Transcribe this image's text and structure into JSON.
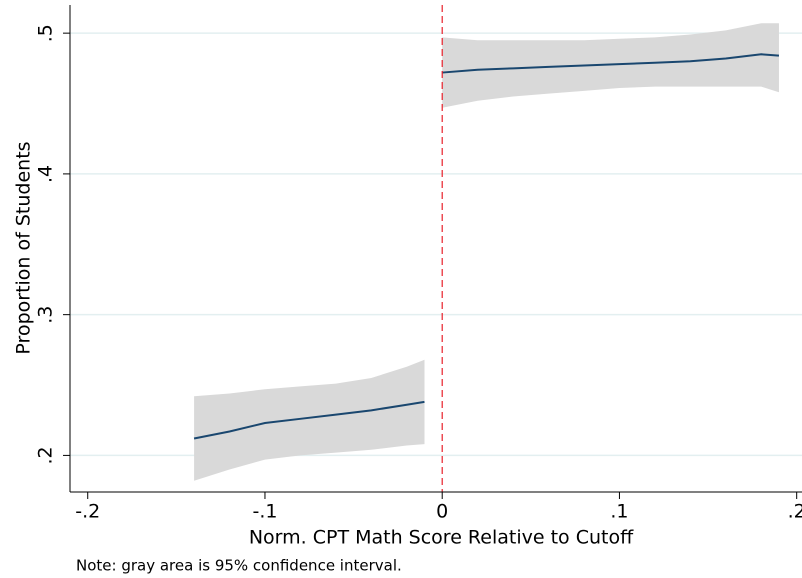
{
  "chart_data": {
    "type": "line",
    "y_label": "Proportion of Students",
    "x_label": "Norm. CPT Math Score Relative to Cutoff",
    "note": "Note: gray area is 95% confidence interval.",
    "xlim": [
      -0.21,
      0.203
    ],
    "ylim": [
      0.174,
      0.52
    ],
    "xticks": [
      {
        "value": -0.2,
        "label": "-.2"
      },
      {
        "value": -0.1,
        "label": "-.1"
      },
      0,
      {
        "value": 0.1,
        "label": ".1"
      },
      {
        "value": 0.2,
        "label": ".2"
      }
    ],
    "yticks": [
      {
        "value": 0.2,
        "label": ".2"
      },
      {
        "value": 0.3,
        "label": ".3"
      },
      {
        "value": 0.4,
        "label": ".4"
      },
      {
        "value": 0.5,
        "label": ".5"
      }
    ],
    "grid": true,
    "grid_color": "#e3eff0",
    "line_color": "#1a476f",
    "band_color": "#d9d9d9",
    "cutoff": 0,
    "cutoff_color": "#e8202a",
    "segments": [
      {
        "x": [
          -0.14,
          -0.12,
          -0.1,
          -0.08,
          -0.06,
          -0.04,
          -0.02,
          -0.01
        ],
        "values": [
          0.212,
          0.217,
          0.223,
          0.226,
          0.229,
          0.232,
          0.236,
          0.238
        ],
        "upper": [
          0.242,
          0.244,
          0.247,
          0.249,
          0.251,
          0.255,
          0.263,
          0.268
        ],
        "lower": [
          0.182,
          0.19,
          0.197,
          0.2,
          0.202,
          0.204,
          0.207,
          0.208
        ]
      },
      {
        "x": [
          0,
          0.02,
          0.04,
          0.06,
          0.08,
          0.1,
          0.12,
          0.14,
          0.16,
          0.18,
          0.19
        ],
        "values": [
          0.472,
          0.474,
          0.475,
          0.476,
          0.477,
          0.478,
          0.479,
          0.48,
          0.482,
          0.485,
          0.484
        ],
        "upper": [
          0.497,
          0.495,
          0.495,
          0.495,
          0.495,
          0.496,
          0.497,
          0.499,
          0.502,
          0.507,
          0.507
        ],
        "lower": [
          0.447,
          0.452,
          0.455,
          0.457,
          0.459,
          0.461,
          0.462,
          0.462,
          0.462,
          0.462,
          0.458
        ]
      }
    ]
  }
}
